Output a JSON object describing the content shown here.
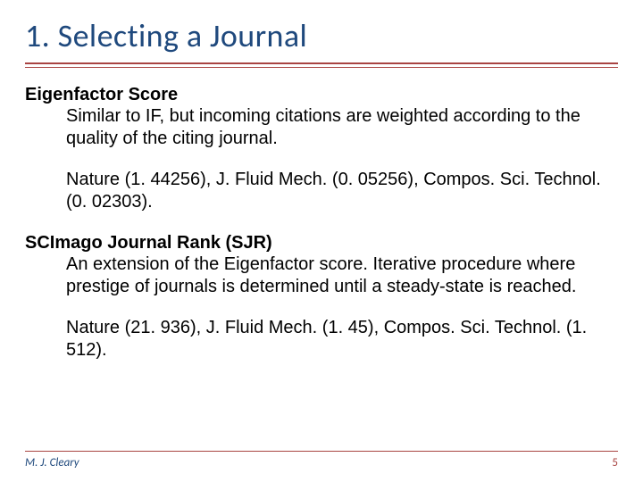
{
  "colors": {
    "title": "#1f497d",
    "rule": "#a94442",
    "body_text": "#000000",
    "footer_author": "#1f497d",
    "footer_page": "#a94442",
    "background": "#ffffff"
  },
  "typography": {
    "title_font": "Calibri",
    "title_size_pt": 28,
    "body_font": "Arial",
    "body_size_pt": 16,
    "footer_size_pt": 10
  },
  "title": "1. Selecting a Journal",
  "sections": [
    {
      "heading": "Eigenfactor Score",
      "desc": "Similar to IF, but incoming citations are weighted according to the quality of the citing journal.",
      "examples": "Nature (1. 44256), J. Fluid Mech. (0. 05256), Compos. Sci. Technol. (0. 02303)."
    },
    {
      "heading": "SCImago Journal Rank (SJR)",
      "desc": "An extension of the Eigenfactor score. Iterative procedure where prestige of journals is determined until a steady-state is reached.",
      "examples": "Nature (21. 936), J. Fluid Mech. (1. 45), Compos. Sci. Technol. (1. 512)."
    }
  ],
  "footer": {
    "author": "M. J. Cleary",
    "page": "5"
  }
}
